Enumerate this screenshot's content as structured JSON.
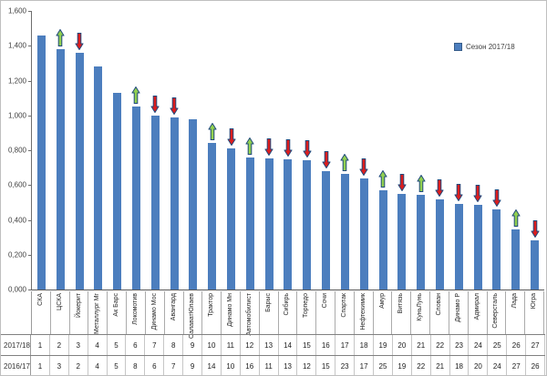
{
  "legend": {
    "label": "Сезон 2017/18"
  },
  "chart_data": {
    "type": "bar",
    "title": "",
    "legend": "Сезон 2017/18",
    "legend_position": "top-right",
    "grid": false,
    "ylim": [
      0,
      1.6
    ],
    "yticks": [
      "0,000",
      "0,200",
      "0,400",
      "0,600",
      "0,800",
      "1,000",
      "1,200",
      "1,400",
      "1,600"
    ],
    "ytick_values": [
      0,
      0.2,
      0.4,
      0.6,
      0.8,
      1.0,
      1.2,
      1.4,
      1.6
    ],
    "bar_color": "#4C7EBE",
    "arrow_up_color": "#92D050",
    "arrow_down_color": "#DD1D1D",
    "arrow_border_color": "#1F497D",
    "categories": [
      "СКА",
      "ЦСКА",
      "Йокерит",
      "Металлург Мг",
      "Ак Барс",
      "Локомотив",
      "Динамо Мос",
      "Авангард",
      "СалаватЮлаев",
      "Трактор",
      "Динамо Мн",
      "Автомобилист",
      "Барыс",
      "Сибирь",
      "Торпедо",
      "Сочи",
      "Спартак",
      "Нефтехимик",
      "Амур",
      "Витязь",
      "КуньЛунь",
      "Слован",
      "Динамо Р",
      "Адмирал",
      "Северсталь",
      "Лада",
      "Югра"
    ],
    "values": [
      1.46,
      1.38,
      1.36,
      1.28,
      1.13,
      1.05,
      1.0,
      0.99,
      0.98,
      0.84,
      0.81,
      0.76,
      0.755,
      0.75,
      0.74,
      0.68,
      0.665,
      0.64,
      0.57,
      0.55,
      0.545,
      0.52,
      0.49,
      0.485,
      0.46,
      0.345,
      0.285
    ],
    "trend": [
      "none",
      "up",
      "down",
      "none",
      "none",
      "up",
      "down",
      "down",
      "none",
      "up",
      "down",
      "up",
      "down",
      "down",
      "down",
      "down",
      "up",
      "down",
      "up",
      "down",
      "up",
      "down",
      "down",
      "down",
      "down",
      "up",
      "down"
    ],
    "table_rows": [
      {
        "header": "2017/18",
        "values": [
          1,
          2,
          3,
          4,
          5,
          6,
          7,
          8,
          9,
          10,
          11,
          12,
          13,
          14,
          15,
          16,
          17,
          18,
          19,
          20,
          21,
          22,
          23,
          24,
          25,
          26,
          27
        ]
      },
      {
        "header": "2016/17",
        "values": [
          1,
          3,
          2,
          4,
          5,
          8,
          6,
          7,
          9,
          14,
          10,
          16,
          11,
          13,
          12,
          15,
          23,
          17,
          25,
          19,
          22,
          21,
          18,
          20,
          24,
          27,
          26
        ]
      }
    ]
  }
}
